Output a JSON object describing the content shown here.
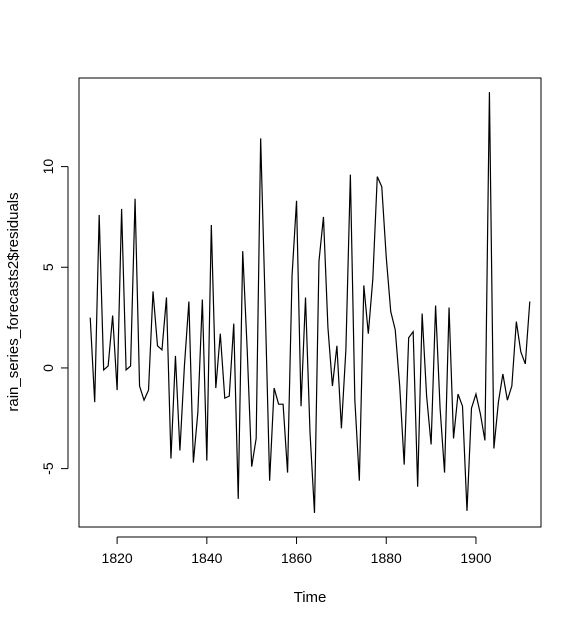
{
  "chart_data": {
    "type": "line",
    "title": "",
    "xlabel": "Time",
    "ylabel": "rain_series_forecasts2$residuals",
    "xlim": [
      1811.5,
      1914.5
    ],
    "ylim": [
      -7.9,
      14.4
    ],
    "x_ticks": [
      1820,
      1840,
      1860,
      1880,
      1900
    ],
    "x_tick_labels": [
      "1820",
      "1840",
      "1860",
      "1880",
      "1900"
    ],
    "y_ticks": [
      -5,
      0,
      5,
      10
    ],
    "y_tick_labels": [
      "-5",
      "0",
      "5",
      "10"
    ],
    "grid": false,
    "legend": "none",
    "line_color": "#000000",
    "x_start": 1814,
    "x_step": 1,
    "x": [
      1814,
      1815,
      1816,
      1817,
      1818,
      1819,
      1820,
      1821,
      1822,
      1823,
      1824,
      1825,
      1826,
      1827,
      1828,
      1829,
      1830,
      1831,
      1832,
      1833,
      1834,
      1835,
      1836,
      1837,
      1838,
      1839,
      1840,
      1841,
      1842,
      1843,
      1844,
      1845,
      1846,
      1847,
      1848,
      1849,
      1850,
      1851,
      1852,
      1853,
      1854,
      1855,
      1856,
      1857,
      1858,
      1859,
      1860,
      1861,
      1862,
      1863,
      1864,
      1865,
      1866,
      1867,
      1868,
      1869,
      1870,
      1871,
      1872,
      1873,
      1874,
      1875,
      1876,
      1877,
      1878,
      1879,
      1880,
      1881,
      1882,
      1883,
      1884,
      1885,
      1886,
      1887,
      1888,
      1889,
      1890,
      1891,
      1892,
      1893,
      1894,
      1895,
      1896,
      1897,
      1898,
      1899,
      1900,
      1901,
      1902,
      1903,
      1904,
      1905,
      1906,
      1907,
      1908,
      1909,
      1910,
      1911,
      1912
    ],
    "values": [
      2.5,
      -1.7,
      7.6,
      -0.1,
      0.1,
      2.6,
      -1.1,
      7.9,
      -0.1,
      0.1,
      8.4,
      -0.9,
      -1.6,
      -1.1,
      3.8,
      1.1,
      0.9,
      3.5,
      -4.5,
      0.6,
      -4.1,
      0.1,
      3.3,
      -4.7,
      -2.2,
      3.4,
      -4.6,
      7.1,
      -1.0,
      1.7,
      -1.5,
      -1.4,
      2.2,
      -6.5,
      5.8,
      0.9,
      -4.9,
      -3.5,
      11.4,
      3.2,
      -5.6,
      -1.0,
      -1.8,
      -1.8,
      -5.2,
      4.6,
      8.3,
      -1.9,
      3.5,
      -3.2,
      -7.2,
      5.3,
      7.5,
      2.0,
      -0.9,
      1.1,
      -3.0,
      0.9,
      9.6,
      -1.6,
      -5.6,
      4.1,
      1.7,
      4.4,
      9.5,
      9.0,
      5.5,
      2.8,
      1.9,
      -0.9,
      -4.8,
      1.5,
      1.8,
      -5.9,
      2.7,
      -1.4,
      -3.8,
      3.1,
      -2.0,
      -5.2,
      3.0,
      -3.5,
      -1.3,
      -1.9,
      -7.1,
      -2.0,
      -1.3,
      -2.3,
      -3.6,
      13.7,
      -4.0,
      -1.7,
      -0.3,
      -1.6,
      -0.9,
      2.3,
      0.8,
      0.2,
      3.3
    ]
  }
}
